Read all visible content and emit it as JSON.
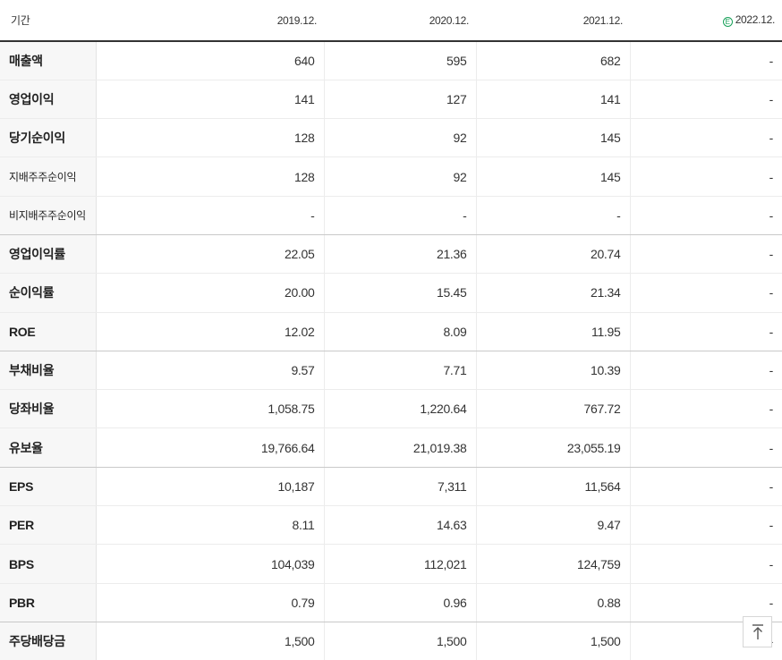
{
  "header": {
    "period_label": "기간",
    "columns": [
      "2019.12.",
      "2020.12.",
      "2021.12.",
      "2022.12."
    ],
    "estimate_icon": "E",
    "estimate_color": "#19a15a"
  },
  "rows": [
    {
      "label": "매출액",
      "values": [
        "640",
        "595",
        "682",
        "-"
      ]
    },
    {
      "label": "영업이익",
      "values": [
        "141",
        "127",
        "141",
        "-"
      ]
    },
    {
      "label": "당기순이익",
      "values": [
        "128",
        "92",
        "145",
        "-"
      ]
    },
    {
      "label": "지배주주순이익",
      "values": [
        "128",
        "92",
        "145",
        "-"
      ]
    },
    {
      "label": "비지배주주순이익",
      "values": [
        "-",
        "-",
        "-",
        "-"
      ]
    },
    {
      "label": "영업이익률",
      "values": [
        "22.05",
        "21.36",
        "20.74",
        "-"
      ]
    },
    {
      "label": "순이익률",
      "values": [
        "20.00",
        "15.45",
        "21.34",
        "-"
      ]
    },
    {
      "label": "ROE",
      "values": [
        "12.02",
        "8.09",
        "11.95",
        "-"
      ]
    },
    {
      "label": "부채비율",
      "values": [
        "9.57",
        "7.71",
        "10.39",
        "-"
      ]
    },
    {
      "label": "당좌비율",
      "values": [
        "1,058.75",
        "1,220.64",
        "767.72",
        "-"
      ]
    },
    {
      "label": "유보율",
      "values": [
        "19,766.64",
        "21,019.38",
        "23,055.19",
        "-"
      ]
    },
    {
      "label": "EPS",
      "values": [
        "10,187",
        "7,311",
        "11,564",
        "-"
      ]
    },
    {
      "label": "PER",
      "values": [
        "8.11",
        "14.63",
        "9.47",
        "-"
      ]
    },
    {
      "label": "BPS",
      "values": [
        "104,039",
        "112,021",
        "124,759",
        "-"
      ]
    },
    {
      "label": "PBR",
      "values": [
        "0.79",
        "0.96",
        "0.88",
        "-"
      ]
    },
    {
      "label": "주당배당금",
      "values": [
        "1,500",
        "1,500",
        "1,500",
        "-"
      ]
    }
  ],
  "scroll_top_icon": "arrow-up-to-line-icon"
}
